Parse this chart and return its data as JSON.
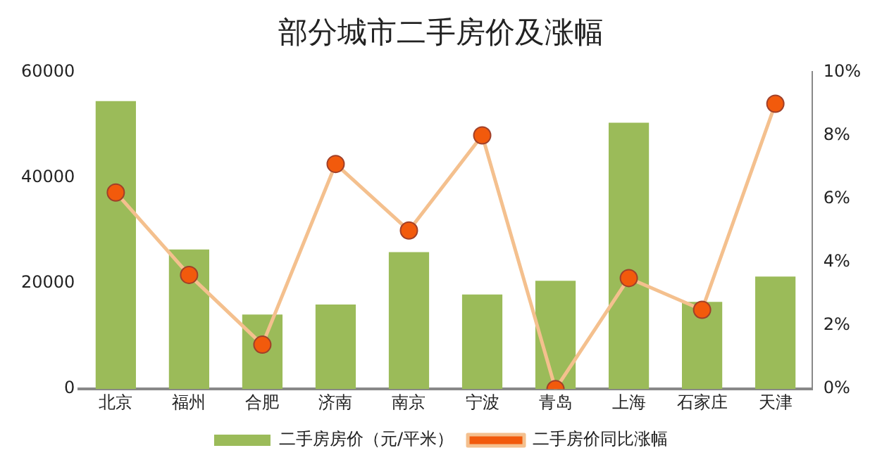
{
  "chart_data": {
    "type": "bar",
    "title": "部分城市二手房价及涨幅",
    "categories": [
      "北京",
      "福州",
      "合肥",
      "济南",
      "南京",
      "宁波",
      "青岛",
      "上海",
      "石家庄",
      "天津"
    ],
    "series": [
      {
        "name": "二手房房价（元/平米）",
        "color": "#9bbb59",
        "values": [
          54500,
          26400,
          14100,
          16000,
          25900,
          17900,
          20500,
          50400,
          16500,
          21300
        ]
      },
      {
        "name": "二手房价同比涨幅",
        "type": "line",
        "color": "#f4c08e",
        "axis": "y2",
        "marker": "circle",
        "values": [
          6.2,
          3.6,
          1.4,
          7.1,
          5.0,
          8.0,
          0,
          3.5,
          2.5,
          9.0
        ]
      }
    ],
    "ylim": [
      0,
      60000
    ],
    "yticks": [
      0,
      20000,
      40000,
      60000
    ],
    "y2lim": [
      0,
      10
    ],
    "y2ticks": [
      {
        "value": 0,
        "label": "0%"
      },
      {
        "value": 2,
        "label": "2%"
      },
      {
        "value": 4,
        "label": "4%"
      },
      {
        "value": 6,
        "label": "6%"
      },
      {
        "value": 8,
        "label": "8%"
      },
      {
        "value": 10,
        "label": "10%"
      }
    ],
    "legend": "bottom",
    "grid": false
  }
}
